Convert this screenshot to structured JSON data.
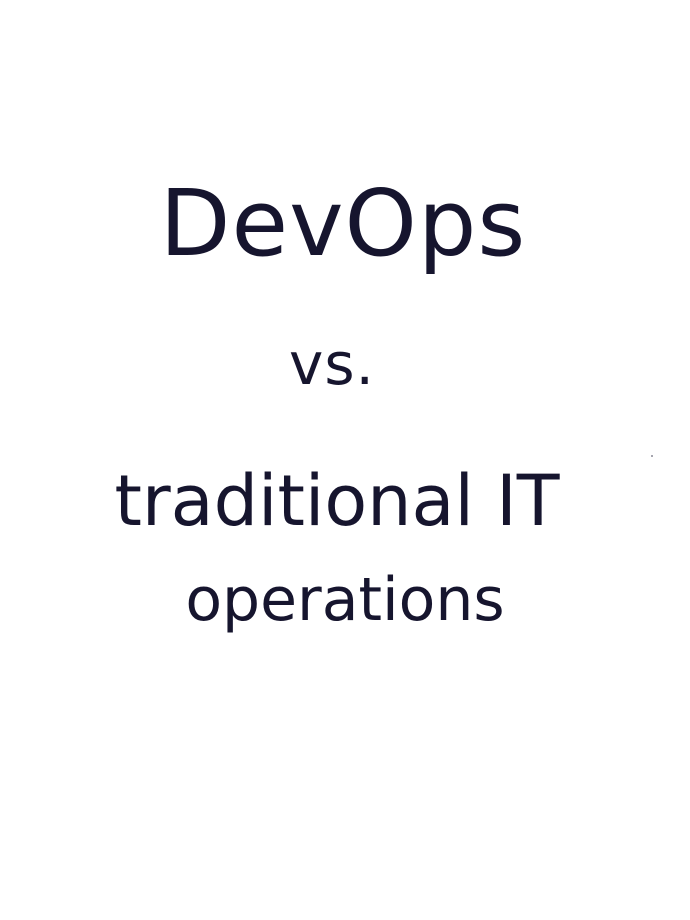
{
  "lines": {
    "line1": "DevOps",
    "line2": "vs.",
    "line3": "traditional IT",
    "line4": "operations"
  },
  "colors": {
    "ink": "#16152e",
    "background": "#ffffff"
  }
}
